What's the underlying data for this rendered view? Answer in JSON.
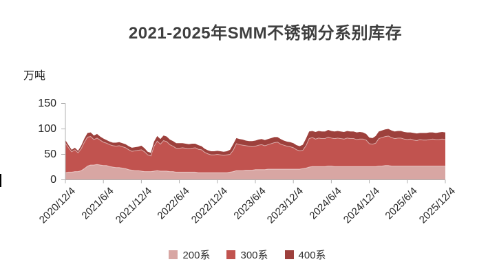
{
  "title": "2021-2025年SMM不锈钢分系别库存",
  "y_axis": {
    "unit_label": "万吨"
  },
  "chart_data": {
    "type": "area",
    "stacked": true,
    "title": "2021-2025年SMM不锈钢分系别库存",
    "ylabel": "万吨",
    "ylim": [
      0,
      150
    ],
    "y_ticks": [
      0,
      50,
      100,
      150
    ],
    "grid": false,
    "legend_position": "bottom",
    "x_start": "2020/12/4",
    "x_end": "2025/12/4",
    "x_step_months": 0.5,
    "x_tick_labels": [
      "2020/12/4",
      "2021/6/4",
      "2021/12/4",
      "2022/6/4",
      "2022/12/4",
      "2023/6/4",
      "2023/12/4",
      "2024/6/4",
      "2024/12/4",
      "2025/6/4",
      "2025/12/4"
    ],
    "axis_color": "#b0b0b0",
    "separator_stroke": "rgba(255,255,255,0.5)",
    "series": [
      {
        "name": "200系",
        "color": "#d8a6a3",
        "values": [
          14,
          15,
          15,
          16,
          16,
          18,
          22,
          27,
          29,
          29,
          30,
          29,
          28,
          28,
          26,
          25,
          24,
          24,
          23,
          22,
          20,
          19,
          18,
          18,
          17,
          16,
          16,
          16,
          17,
          18,
          17,
          17,
          17,
          16,
          16,
          15,
          15,
          15,
          15,
          15,
          15,
          15,
          14,
          14,
          14,
          14,
          14,
          14,
          14,
          14,
          14,
          14,
          15,
          16,
          18,
          18,
          18,
          19,
          19,
          19,
          20,
          20,
          20,
          20,
          21,
          21,
          21,
          21,
          21,
          21,
          21,
          21,
          21,
          21,
          21,
          22,
          23,
          25,
          26,
          26,
          26,
          26,
          26,
          27,
          27,
          26,
          26,
          26,
          26,
          26,
          26,
          26,
          26,
          26,
          26,
          26,
          26,
          26,
          26,
          27,
          27,
          28,
          28,
          27,
          27,
          27,
          27,
          27,
          27,
          27,
          27,
          27,
          27,
          27,
          27,
          27,
          27,
          27,
          27,
          27,
          27
        ]
      },
      {
        "name": "300系",
        "color": "#c1534f",
        "values": [
          58,
          48,
          40,
          43,
          37,
          43,
          52,
          57,
          56,
          50,
          52,
          49,
          46,
          44,
          43,
          42,
          42,
          43,
          42,
          41,
          39,
          37,
          39,
          40,
          42,
          39,
          33,
          31,
          49,
          58,
          53,
          60,
          58,
          53,
          50,
          47,
          47,
          48,
          47,
          46,
          47,
          48,
          46,
          45,
          40,
          37,
          35,
          35,
          36,
          35,
          34,
          35,
          35,
          42,
          53,
          51,
          50,
          48,
          47,
          46,
          46,
          48,
          49,
          47,
          48,
          50,
          52,
          53,
          49,
          47,
          45,
          44,
          42,
          38,
          36,
          36,
          44,
          56,
          57,
          54,
          56,
          55,
          55,
          57,
          55,
          55,
          56,
          55,
          54,
          56,
          55,
          55,
          53,
          54,
          54,
          52,
          45,
          44,
          46,
          54,
          56,
          57,
          58,
          56,
          54,
          55,
          55,
          53,
          52,
          53,
          51,
          50,
          52,
          51,
          51,
          52,
          53,
          52,
          52,
          53,
          52
        ]
      },
      {
        "name": "400系",
        "color": "#9d403c",
        "values": [
          6,
          5,
          4,
          4,
          4,
          6,
          7,
          8,
          8,
          8,
          8,
          7,
          7,
          6,
          6,
          6,
          7,
          7,
          7,
          7,
          7,
          7,
          7,
          7,
          8,
          7,
          6,
          6,
          9,
          10,
          10,
          10,
          10,
          10,
          10,
          10,
          10,
          9,
          9,
          9,
          9,
          8,
          8,
          7,
          7,
          7,
          7,
          7,
          7,
          7,
          7,
          7,
          9,
          12,
          11,
          11,
          11,
          10,
          10,
          11,
          11,
          11,
          11,
          11,
          11,
          11,
          11,
          10,
          10,
          9,
          9,
          9,
          9,
          9,
          9,
          11,
          14,
          14,
          13,
          14,
          14,
          14,
          14,
          14,
          14,
          14,
          14,
          14,
          14,
          14,
          14,
          14,
          14,
          14,
          13,
          12,
          12,
          12,
          14,
          14,
          14,
          14,
          14,
          14,
          14,
          14,
          14,
          14,
          14,
          13,
          14,
          14,
          13,
          14,
          14,
          14,
          13,
          13,
          14,
          14,
          14
        ]
      }
    ]
  }
}
